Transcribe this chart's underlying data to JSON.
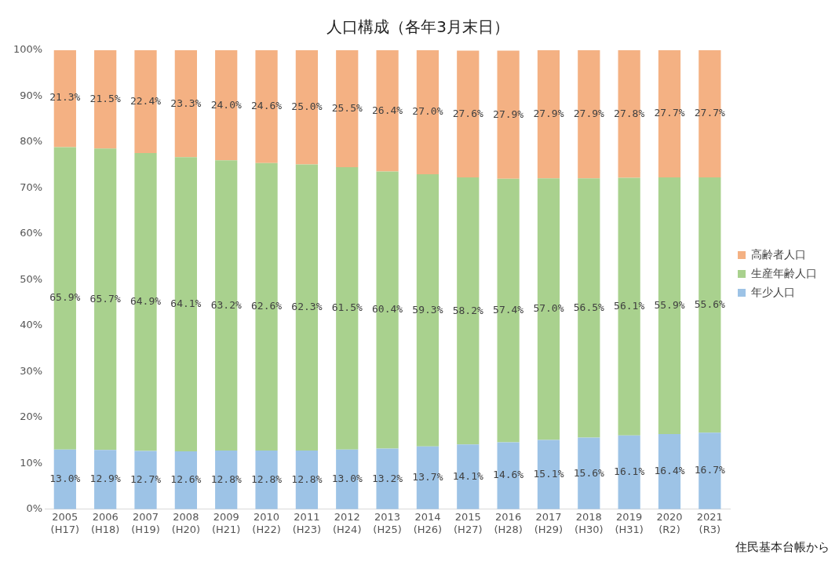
{
  "chart_data": {
    "type": "bar",
    "title": "人口構成（各年3月末日）",
    "stacked": true,
    "categories": [
      "2005\n(H17)",
      "2006\n(H18)",
      "2007\n(H19)",
      "2008\n(H20)",
      "2009\n(H21)",
      "2010\n(H22)",
      "2011\n(H23)",
      "2012\n(H24)",
      "2013\n(H25)",
      "2014\n(H26)",
      "2015\n(H27)",
      "2016\n(H28)",
      "2017\n(H29)",
      "2018\n(H30)",
      "2019\n(H31)",
      "2020\n(R2)",
      "2021\n(R3)"
    ],
    "series": [
      {
        "name": "年少人口",
        "color": "#9dc3e6",
        "values": [
          13.0,
          12.9,
          12.7,
          12.6,
          12.8,
          12.8,
          12.8,
          13.0,
          13.2,
          13.7,
          14.1,
          14.6,
          15.1,
          15.6,
          16.1,
          16.4,
          16.7
        ],
        "value_labels": [
          "13.0%",
          "12.9%",
          "12.7%",
          "12.6%",
          "12.8%",
          "12.8%",
          "12.8%",
          "13.0%",
          "13.2%",
          "13.7%",
          "14.1%",
          "14.6%",
          "15.1%",
          "15.6%",
          "16.1%",
          "16.4%",
          "16.7%"
        ]
      },
      {
        "name": "生産年齢人口",
        "color": "#a9d18e",
        "values": [
          65.9,
          65.7,
          64.9,
          64.1,
          63.2,
          62.6,
          62.3,
          61.5,
          60.4,
          59.3,
          58.2,
          57.4,
          57.0,
          56.5,
          56.1,
          55.9,
          55.6
        ],
        "value_labels": [
          "65.9%",
          "65.7%",
          "64.9%",
          "64.1%",
          "63.2%",
          "62.6%",
          "62.3%",
          "61.5%",
          "60.4%",
          "59.3%",
          "58.2%",
          "57.4%",
          "57.0%",
          "56.5%",
          "56.1%",
          "55.9%",
          "55.6%"
        ]
      },
      {
        "name": "高齢者人口",
        "color": "#f4b183",
        "values": [
          21.3,
          21.5,
          22.4,
          23.3,
          24.0,
          24.6,
          25.0,
          25.5,
          26.4,
          27.0,
          27.6,
          27.9,
          27.9,
          27.9,
          27.8,
          27.7,
          27.7
        ],
        "value_labels": [
          "21.3%",
          "21.5%",
          "22.4%",
          "23.3%",
          "24.0%",
          "24.6%",
          "25.0%",
          "25.5%",
          "26.4%",
          "27.0%",
          "27.6%",
          "27.9%",
          "27.9%",
          "27.9%",
          "27.8%",
          "27.7%",
          "27.7%"
        ]
      }
    ],
    "ylim": [
      0,
      100
    ],
    "yticks": [
      {
        "value": 0,
        "label": "0%"
      },
      {
        "value": 10,
        "label": "10%"
      },
      {
        "value": 20,
        "label": "20%"
      },
      {
        "value": 30,
        "label": "30%"
      },
      {
        "value": 40,
        "label": "40%"
      },
      {
        "value": 50,
        "label": "50%"
      },
      {
        "value": 60,
        "label": "60%"
      },
      {
        "value": 70,
        "label": "70%"
      },
      {
        "value": 80,
        "label": "80%"
      },
      {
        "value": 90,
        "label": "90%"
      },
      {
        "value": 100,
        "label": "100%"
      }
    ],
    "grid": false,
    "legend": "right",
    "annotations": [
      "住民基本台帳から"
    ]
  }
}
